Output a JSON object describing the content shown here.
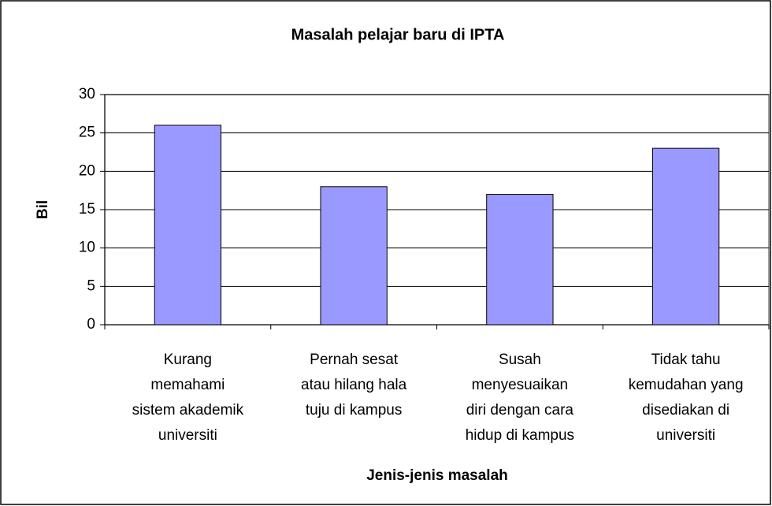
{
  "chart_data": {
    "type": "bar",
    "title": "Masalah pelajar baru di IPTA",
    "categories": [
      [
        "Kurang",
        "memahami",
        "sistem akademik",
        "universiti"
      ],
      [
        "Pernah sesat",
        "atau hilang hala",
        "tuju di kampus"
      ],
      [
        "Susah",
        "menyesuaikan",
        "diri dengan cara",
        "hidup di kampus"
      ],
      [
        "Tidak tahu",
        "kemudahan yang",
        "disediakan di",
        "universiti"
      ]
    ],
    "values": [
      26,
      18,
      17,
      23
    ],
    "color": "#9999ff",
    "xlabel": "Jenis-jenis masalah",
    "ylabel": "Bil",
    "ylim": [
      0,
      30
    ],
    "yticks": [
      0,
      5,
      10,
      15,
      20,
      25,
      30
    ],
    "grid": true
  }
}
